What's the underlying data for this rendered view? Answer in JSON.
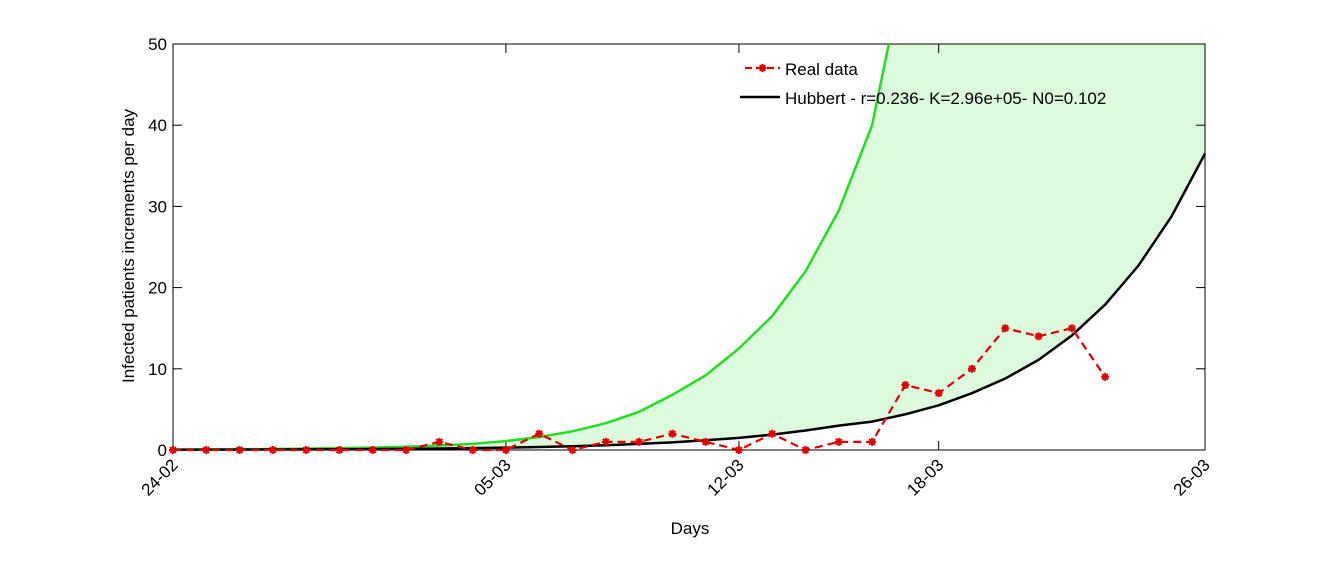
{
  "chart_data": {
    "type": "line",
    "title": "",
    "xlabel": "Days",
    "ylabel": "Infected patients increments per day",
    "xlim": [
      0,
      31
    ],
    "ylim": [
      0,
      50
    ],
    "x_ticks": [
      {
        "x": 0,
        "label": "24-02"
      },
      {
        "x": 10,
        "label": "05-03"
      },
      {
        "x": 17,
        "label": "12-03"
      },
      {
        "x": 23,
        "label": "18-03"
      },
      {
        "x": 31,
        "label": "26-03"
      }
    ],
    "y_ticks": [
      0,
      10,
      20,
      30,
      40,
      50
    ],
    "grid": false,
    "legend_position": "top-right",
    "colors": {
      "real": "#e00000",
      "hubbert": "#000000",
      "band": "#22dd22",
      "band_fill": "#dcfadc"
    },
    "series": [
      {
        "name": "Real data",
        "style": "dashed-markers",
        "x": [
          0,
          1,
          2,
          3,
          4,
          5,
          6,
          7,
          8,
          9,
          10,
          11,
          12,
          13,
          14,
          15,
          16,
          17,
          18,
          19,
          20,
          21,
          22,
          23,
          24,
          25,
          26,
          27,
          28
        ],
        "values": [
          0,
          0,
          0,
          0,
          0,
          0,
          0,
          0,
          1,
          0,
          0,
          2,
          0,
          1,
          1,
          2,
          1,
          0,
          2,
          0,
          1,
          1,
          8,
          7,
          10,
          15,
          14,
          15,
          9
        ]
      },
      {
        "name": "Hubbert - r=0.236- K=2.96e+05- N0=0.102",
        "style": "solid",
        "x": [
          0,
          1,
          2,
          3,
          4,
          5,
          6,
          7,
          8,
          9,
          10,
          11,
          12,
          13,
          14,
          15,
          16,
          17,
          18,
          19,
          20,
          21,
          22,
          23,
          24,
          25,
          26,
          27,
          28,
          29,
          30,
          31
        ],
        "values": [
          0.03,
          0.04,
          0.05,
          0.06,
          0.07,
          0.09,
          0.11,
          0.14,
          0.18,
          0.23,
          0.29,
          0.37,
          0.46,
          0.59,
          0.75,
          0.94,
          1.2,
          1.5,
          1.9,
          2.4,
          3.0,
          3.5,
          4.4,
          5.5,
          7.0,
          8.8,
          11.1,
          14.1,
          17.9,
          22.7,
          28.8,
          36.5
        ]
      },
      {
        "name": "",
        "style": "upper-band",
        "x": [
          0,
          1,
          2,
          3,
          4,
          5,
          6,
          7,
          8,
          9,
          10,
          11,
          12,
          13,
          14,
          15,
          16,
          17,
          18,
          19,
          20,
          21,
          21.5
        ],
        "values": [
          0.06,
          0.08,
          0.1,
          0.13,
          0.17,
          0.23,
          0.3,
          0.4,
          0.55,
          0.75,
          1.1,
          1.6,
          2.3,
          3.3,
          4.7,
          6.8,
          9.2,
          12.5,
          16.5,
          22.0,
          29.5,
          40.0,
          50.0
        ]
      }
    ],
    "band_top_right": 50
  }
}
